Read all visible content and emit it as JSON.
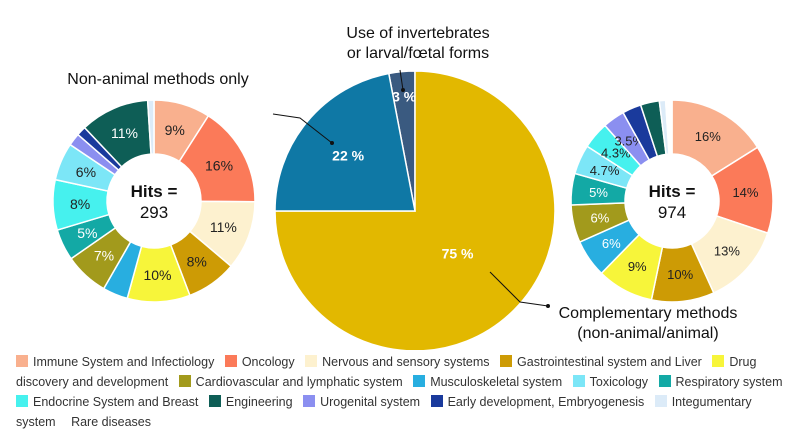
{
  "colors": {
    "Immune System and Infectiology": "#f9b08e",
    "Oncology": "#fb7a59",
    "Nervous and sensory systems": "#fdf1cf",
    "Gastrointestinal system and Liver": "#cd9b05",
    "Drug discovery and development": "#f7f53a",
    "Cardiovascular and lymphatic system": "#a29a1c",
    "Musculoskeletal system": "#28aee0",
    "Toxicology": "#7ce6f7",
    "Respiratory system": "#13a9a5",
    "Endocrine System and Breast": "#46f1ee",
    "Engineering": "#0e5e56",
    "Urogenital system": "#8b8ff0",
    "Early development, Embryogenesis": "#1a3a9c",
    "Integumentary system": "#dcebf8",
    "Rare diseases": "#ffffff"
  },
  "chart_data": [
    {
      "type": "pie",
      "variant": "donut",
      "title": "Non-animal methods only",
      "center_label": "Hits =",
      "center_value": "293",
      "slices": [
        {
          "category": "Immune System and Infectiology",
          "value": 9,
          "label": "9%"
        },
        {
          "category": "Oncology",
          "value": 16,
          "label": "16%"
        },
        {
          "category": "Nervous and sensory systems",
          "value": 11,
          "label": "11%"
        },
        {
          "category": "Gastrointestinal system and Liver",
          "value": 8,
          "label": "8%"
        },
        {
          "category": "Drug discovery and development",
          "value": 10,
          "label": "10%"
        },
        {
          "category": "Musculoskeletal system",
          "value": 4,
          "label": ""
        },
        {
          "category": "Cardiovascular and lymphatic system",
          "value": 7,
          "label": "7%"
        },
        {
          "category": "Respiratory system",
          "value": 5,
          "label": "5%"
        },
        {
          "category": "Endocrine System and Breast",
          "value": 8,
          "label": "8%"
        },
        {
          "category": "Toxicology",
          "value": 6,
          "label": "6%"
        },
        {
          "category": "Urogenital system",
          "value": 2,
          "label": ""
        },
        {
          "category": "Early development, Embryogenesis",
          "value": 1.5,
          "label": ""
        },
        {
          "category": "Engineering",
          "value": 11,
          "label": "11%"
        },
        {
          "category": "Integumentary system",
          "value": 1,
          "label": ""
        }
      ]
    },
    {
      "type": "pie",
      "title": "",
      "slices": [
        {
          "category": "Use of invertebrates or larval/fœtal forms",
          "value": 3,
          "label": "3 %",
          "color": "#3a5a80"
        },
        {
          "category": "Non-animal methods only",
          "value": 75,
          "label": "75 %",
          "color": "#e2b800"
        },
        {
          "category": "Complementary methods (non-animal/animal)",
          "value": 22,
          "label": "22 %",
          "color": "#0f78a5"
        }
      ],
      "annotations": [
        "Use of invertebrates",
        "or larval/fœtal forms"
      ]
    },
    {
      "type": "pie",
      "variant": "donut",
      "title": "Complementary methods (non-animal/animal)",
      "title_lines": [
        "Complementary methods",
        "(non-animal/animal)"
      ],
      "center_label": "Hits =",
      "center_value": "974",
      "slices": [
        {
          "category": "Immune System and Infectiology",
          "value": 16,
          "label": "16%"
        },
        {
          "category": "Oncology",
          "value": 14,
          "label": "14%"
        },
        {
          "category": "Nervous and sensory systems",
          "value": 13,
          "label": "13%"
        },
        {
          "category": "Gastrointestinal system and Liver",
          "value": 10,
          "label": "10%"
        },
        {
          "category": "Drug discovery and development",
          "value": 9,
          "label": "9%"
        },
        {
          "category": "Musculoskeletal system",
          "value": 6,
          "label": "6%"
        },
        {
          "category": "Cardiovascular and lymphatic system",
          "value": 6,
          "label": "6%"
        },
        {
          "category": "Respiratory system",
          "value": 5,
          "label": "5%"
        },
        {
          "category": "Toxicology",
          "value": 4.7,
          "label": "4.7%"
        },
        {
          "category": "Endocrine System and Breast",
          "value": 4.3,
          "label": "4.3%"
        },
        {
          "category": "Urogenital system",
          "value": 3.5,
          "label": "3.5%"
        },
        {
          "category": "Early development, Embryogenesis",
          "value": 3,
          "label": ""
        },
        {
          "category": "Engineering",
          "value": 3,
          "label": ""
        },
        {
          "category": "Integumentary system",
          "value": 1,
          "label": ""
        },
        {
          "category": "Rare diseases",
          "value": 1,
          "label": ""
        }
      ]
    }
  ],
  "legend": [
    "Immune System and Infectiology",
    "Oncology",
    "Nervous and sensory systems",
    "Gastrointestinal system and Liver",
    "Drug discovery and development",
    "Cardiovascular and lymphatic system",
    "Musculoskeletal system",
    "Toxicology",
    "Respiratory system",
    "Endocrine System and Breast",
    "Engineering",
    "Urogenital system",
    "Early development, Embryogenesis",
    "Integumentary system",
    "Rare diseases"
  ]
}
